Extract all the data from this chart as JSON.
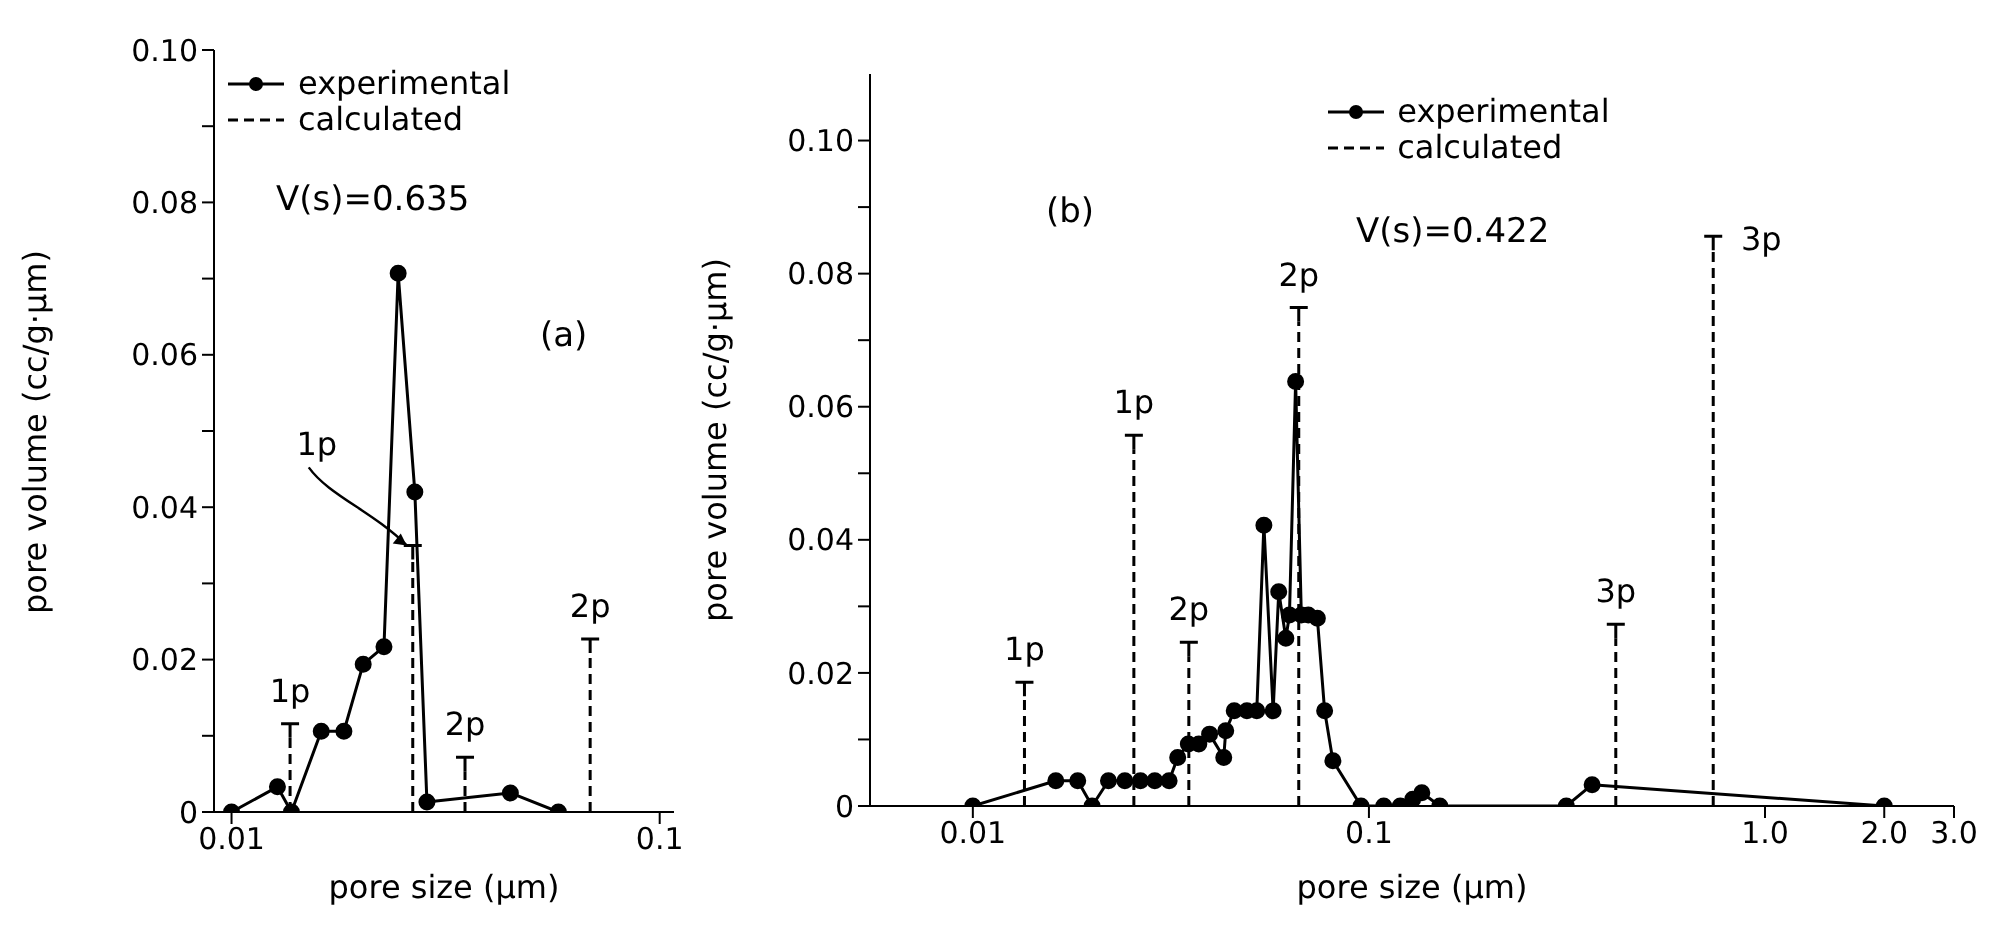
{
  "chart_data": [
    {
      "type": "line",
      "xlabel": "pore size (μm)",
      "ylabel": "pore volume (cc/g·μm)",
      "log": "x",
      "xlim": [
        0.0091,
        0.108
      ],
      "xticks": [
        {
          "value": 0.01,
          "label": "0.01"
        },
        {
          "value": 0.1,
          "label": "0.1"
        }
      ],
      "ylim": [
        0,
        0.1
      ],
      "yticks": [
        0,
        {
          "value": 0.01,
          "label": null
        },
        0.02,
        {
          "value": 0.03,
          "label": null
        },
        0.04,
        {
          "value": 0.05,
          "label": null
        },
        0.06,
        {
          "value": 0.07,
          "label": null
        },
        0.08,
        {
          "value": 0.09,
          "label": null
        },
        {
          "value": 0.1,
          "label": "0.10"
        }
      ],
      "legend": "top left",
      "annotations": [
        "V(s)=0.635",
        "(a)",
        {
          "text": "1p",
          "x": 0.0137,
          "y": 0.0108
        },
        {
          "text": "1p",
          "x": 0.0265,
          "y": 0.0342
        },
        {
          "text": "2p",
          "x": 0.0351,
          "y": 0.0064
        },
        {
          "text": "2p",
          "x": 0.0688,
          "y": 0.0219
        }
      ],
      "series": [
        {
          "name": "experimental",
          "color": "#000000",
          "type": "line",
          "marker": "circle",
          "line_style": "solid",
          "x": [
            0.01,
            0.0128,
            0.0138,
            0.0162,
            0.0183,
            0.0203,
            0.0227,
            0.0245,
            0.0268,
            0.0286,
            0.0448,
            0.058
          ],
          "values": [
            0,
            0.0033,
            0,
            0.0106,
            0.0106,
            0.0194,
            0.0217,
            0.0707,
            0.042,
            0.0013,
            0.0025,
            0
          ]
        },
        {
          "name": "calculated",
          "color": "#000000",
          "type": "lollipop",
          "line_style": "dashed",
          "x": [
            0.0137,
            0.0265,
            0.0351,
            0.0688
          ],
          "values": [
            0.0108,
            0.0342,
            0.0064,
            0.0219
          ]
        }
      ]
    },
    {
      "type": "line",
      "xlabel": "pore size (μm)",
      "ylabel": "pore volume (cc/g·μm)",
      "log": "x",
      "xlim": [
        0.0055,
        3.0
      ],
      "xticks": [
        {
          "value": 0.01,
          "label": "0.01"
        },
        {
          "value": 0.1,
          "label": "0.1"
        },
        {
          "value": 1,
          "label": "1.0"
        },
        {
          "value": 2,
          "label": "2.0"
        },
        {
          "value": 3,
          "label": "3.0"
        }
      ],
      "ylim": [
        0,
        0.11
      ],
      "yticks": [
        0,
        {
          "value": 0.01,
          "label": null
        },
        0.02,
        {
          "value": 0.03,
          "label": null
        },
        0.04,
        {
          "value": 0.05,
          "label": null
        },
        0.06,
        {
          "value": 0.07,
          "label": null
        },
        0.08,
        {
          "value": 0.09,
          "label": null
        },
        {
          "value": 0.1,
          "label": "0.10"
        }
      ],
      "legend": "top",
      "annotations": [
        "(b)",
        "V(s)=0.422",
        {
          "text": "1p",
          "x": 0.0135,
          "y": 0.0177
        },
        {
          "text": "1p",
          "x": 0.0255,
          "y": 0.0548
        },
        {
          "text": "2p",
          "x": 0.0351,
          "y": 0.0237
        },
        {
          "text": "2p",
          "x": 0.0665,
          "y": 0.074
        },
        {
          "text": "3p",
          "x": 0.42,
          "y": 0.0264
        },
        {
          "text": "3p",
          "x": 0.74,
          "y": 0.0847
        }
      ],
      "series": [
        {
          "name": "experimental",
          "color": "#000000",
          "type": "line",
          "marker": "circle",
          "line_style": "solid",
          "x": [
            0.01,
            0.0162,
            0.0184,
            0.02,
            0.022,
            0.0242,
            0.0265,
            0.0288,
            0.0313,
            0.0329,
            0.035,
            0.0372,
            0.0396,
            0.043,
            0.0435,
            0.0457,
            0.0492,
            0.0521,
            0.0543,
            0.0573,
            0.0592,
            0.0617,
            0.063,
            0.0653,
            0.0675,
            0.0703,
            0.0741,
            0.0773,
            0.0811,
            0.0955,
            0.109,
            0.12,
            0.129,
            0.136,
            0.151,
            0.315,
            0.366,
            2.0
          ],
          "values": [
            0,
            0.0038,
            0.0038,
            0,
            0.0038,
            0.0038,
            0.0038,
            0.0038,
            0.0038,
            0.0073,
            0.0093,
            0.0093,
            0.0108,
            0.0073,
            0.0113,
            0.0143,
            0.0143,
            0.0143,
            0.0422,
            0.0143,
            0.0322,
            0.0252,
            0.0287,
            0.0638,
            0.0287,
            0.0287,
            0.0282,
            0.0143,
            0.0068,
            0,
            0,
            0,
            0.001,
            0.002,
            0,
            0,
            0.0032,
            0
          ]
        },
        {
          "name": "calculated",
          "color": "#000000",
          "type": "lollipop",
          "line_style": "dashed",
          "x": [
            0.0135,
            0.0255,
            0.0351,
            0.0665,
            0.42,
            0.74
          ],
          "values": [
            0.0177,
            0.0548,
            0.0237,
            0.074,
            0.0264,
            0.0847
          ]
        }
      ]
    }
  ]
}
